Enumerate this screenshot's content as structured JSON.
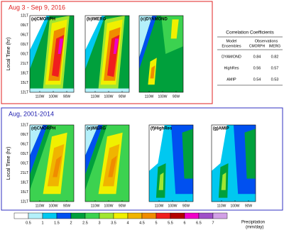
{
  "top": {
    "title": "Aug 3 - Sep 9, 2016",
    "panels": [
      "(a)CMORPH",
      "(b)IMERG",
      "(c)DYAMOND"
    ]
  },
  "bottom": {
    "title": "Aug, 2001-2014",
    "panels": [
      "(d)CMORPH",
      "(e)IMERG",
      "(f)HighRes",
      "(g)AMIP"
    ]
  },
  "y_axis": {
    "label": "Local Time (hr)",
    "ticks": [
      "12LT",
      "09LT",
      "06LT",
      "03LT",
      "00LT",
      "21LT",
      "18LT",
      "15LT",
      "12LT"
    ]
  },
  "x_axis": {
    "ticks": [
      "110W",
      "100W",
      "90W"
    ]
  },
  "table": {
    "title": "Correlation Coefficients",
    "model_header": [
      "Model",
      "Ensembles"
    ],
    "obs_header": "Observations",
    "columns": [
      "CMORPH",
      "IMERG"
    ],
    "rows": [
      [
        "DYAMOND",
        0.84,
        0.82
      ],
      [
        "HighRes",
        0.56,
        0.57
      ],
      [
        "AMIP",
        0.54,
        0.53
      ]
    ]
  },
  "colorbar": {
    "ticks": [
      0.5,
      1,
      1.5,
      2,
      2.5,
      3,
      3.5,
      4,
      4.5,
      5,
      5.5,
      6,
      6.5,
      7
    ],
    "label": [
      "Precipitation",
      "(mm/day)"
    ]
  }
}
